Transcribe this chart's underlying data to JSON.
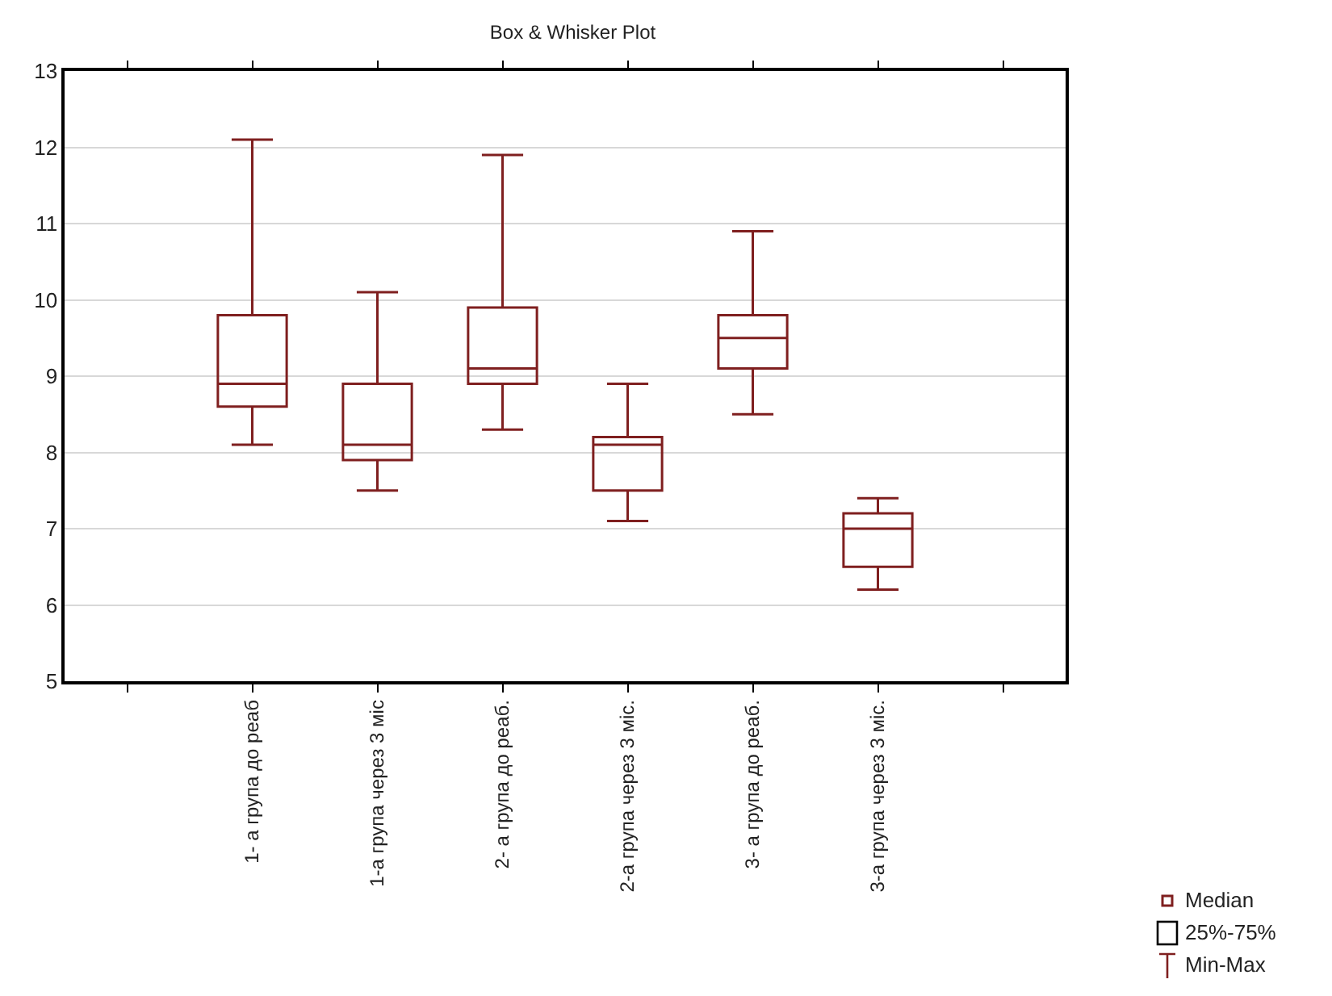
{
  "chart_data": {
    "type": "box",
    "title": "Box & Whisker Plot",
    "categories": [
      null,
      "1- а група до реаб",
      "1-а група через 3 міс",
      "2- а група до реаб.",
      "2-а група через 3 міс.",
      "3- а група до реаб.",
      "3-а група через 3 міс.",
      null
    ],
    "series": [
      {
        "color": "#7f1f1f",
        "boxes": [
          null,
          {
            "low": 8.1,
            "q1": 8.6,
            "median": 8.9,
            "q3": 9.8,
            "high": 12.1
          },
          {
            "low": 7.5,
            "q1": 7.9,
            "median": 8.1,
            "q3": 8.9,
            "high": 10.1
          },
          {
            "low": 8.3,
            "q1": 8.9,
            "median": 9.1,
            "q3": 9.9,
            "high": 11.9
          },
          {
            "low": 7.1,
            "q1": 7.5,
            "median": 8.1,
            "q3": 8.2,
            "high": 8.9
          },
          {
            "low": 8.5,
            "q1": 9.1,
            "median": 9.5,
            "q3": 9.8,
            "high": 10.9
          },
          {
            "low": 6.2,
            "q1": 6.5,
            "median": 7.0,
            "q3": 7.2,
            "high": 7.4
          },
          null
        ]
      }
    ],
    "ylim": [
      5,
      13
    ],
    "yticks": [
      5,
      6,
      7,
      8,
      9,
      10,
      11,
      12,
      13
    ],
    "grid": "y",
    "annotations": [
      "Median",
      "25%-75%",
      "Min-Max"
    ]
  }
}
